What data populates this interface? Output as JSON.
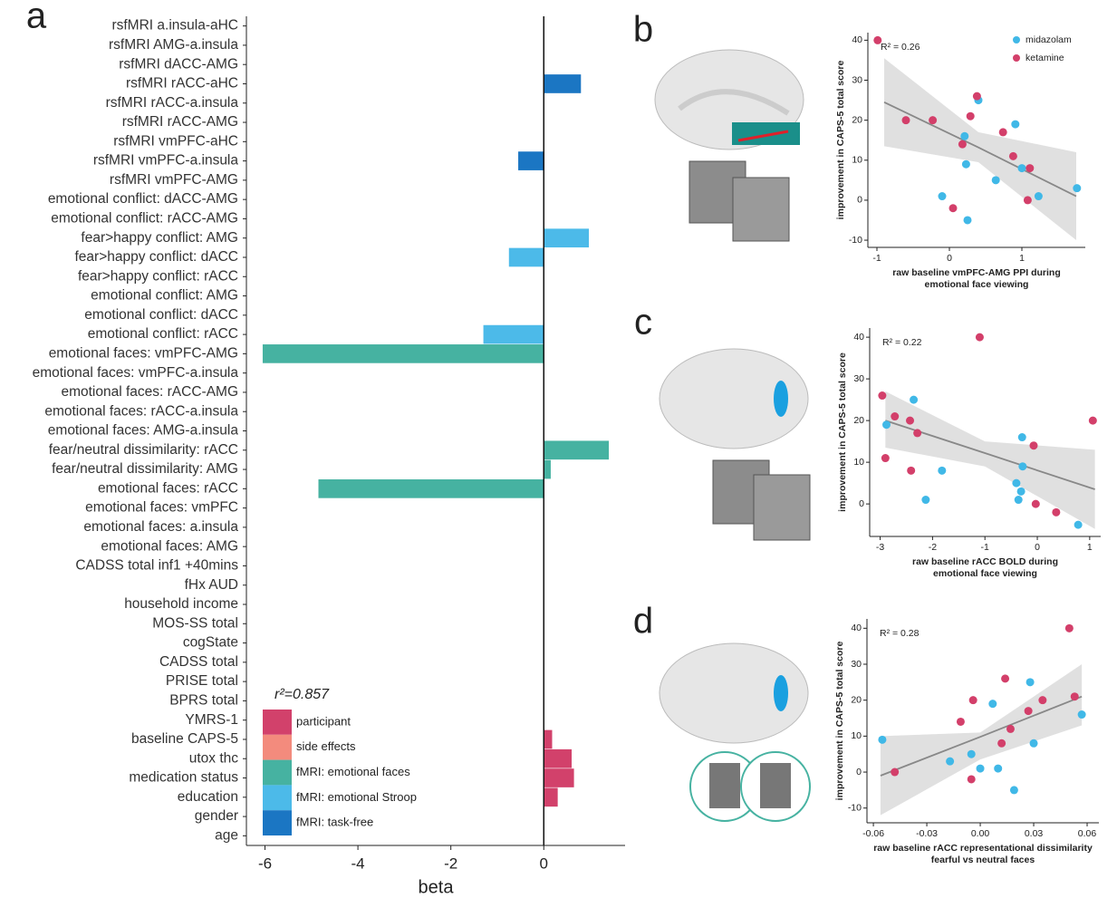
{
  "chart_data": [
    {
      "type": "bar",
      "orientation": "horizontal",
      "panel_label": "a",
      "annotation": "r²=0.857",
      "xlabel": "beta",
      "categories": [
        "rsfMRI a.insula-aHC",
        "rsfMRI AMG-a.insula",
        "rsfMRI dACC-AMG",
        "rsfMRI rACC-aHC",
        "rsfMRI rACC-a.insula",
        "rsfMRI rACC-AMG",
        "rsfMRI vmPFC-aHC",
        "rsfMRI vmPFC-a.insula",
        "rsfMRI vmPFC-AMG",
        "emotional conflict: dACC-AMG",
        "emotional conflict: rACC-AMG",
        "fear>happy conflict: AMG",
        "fear>happy conflict: dACC",
        "fear>happy conflict: rACC",
        "emotional conflict: AMG",
        "emotional conflict: dACC",
        "emotional conflict: rACC",
        "emotional faces: vmPFC-AMG",
        "emotional faces: vmPFC-a.insula",
        "emotional faces: rACC-AMG",
        "emotional faces: rACC-a.insula",
        "emotional faces: AMG-a.insula",
        "fear/neutral dissimilarity: rACC",
        "fear/neutral dissimilarity: AMG",
        "emotional faces: rACC",
        "emotional faces: vmPFC",
        "emotional faces: a.insula",
        "emotional faces: AMG",
        "CADSS total inf1 +40mins",
        "fHx AUD",
        "household income",
        "MOS-SS total",
        "cogState",
        "CADSS total",
        "PRISE total",
        "BPRS total",
        "YMRS-1",
        "baseline CAPS-5",
        "utox thc",
        "medication status",
        "education",
        "gender",
        "age"
      ],
      "series": [
        {
          "name": "participant",
          "color": "#d2416b",
          "values": [
            null,
            null,
            null,
            null,
            null,
            null,
            null,
            null,
            null,
            null,
            null,
            null,
            null,
            null,
            null,
            null,
            null,
            null,
            null,
            null,
            null,
            null,
            null,
            null,
            null,
            null,
            null,
            null,
            null,
            0,
            0,
            0,
            0,
            null,
            0,
            null,
            null,
            0.18,
            0.6,
            0.65,
            0.3,
            0,
            0
          ]
        },
        {
          "name": "side effects",
          "color": "#f38b7d",
          "values": [
            null,
            null,
            null,
            null,
            null,
            null,
            null,
            null,
            null,
            null,
            null,
            null,
            null,
            null,
            null,
            null,
            null,
            null,
            null,
            null,
            null,
            null,
            null,
            null,
            null,
            null,
            null,
            null,
            0,
            null,
            null,
            null,
            null,
            0,
            null,
            0,
            0,
            null,
            null,
            null,
            null,
            null,
            null
          ]
        },
        {
          "name": "fMRI: emotional faces",
          "color": "#46b2a1",
          "values": [
            null,
            null,
            null,
            null,
            null,
            null,
            null,
            null,
            null,
            null,
            null,
            null,
            null,
            null,
            null,
            null,
            null,
            -6.05,
            0,
            0,
            0,
            0,
            1.4,
            0.15,
            -4.85,
            0,
            0,
            0,
            null,
            null,
            null,
            null,
            null,
            null,
            null,
            null,
            null,
            null,
            null,
            null,
            null,
            null,
            null
          ]
        },
        {
          "name": "fMRI: emotional Stroop",
          "color": "#4cbae9",
          "values": [
            null,
            null,
            null,
            null,
            null,
            null,
            null,
            null,
            null,
            0,
            0,
            0.97,
            -0.75,
            0,
            0,
            0,
            -1.3,
            null,
            null,
            null,
            null,
            null,
            null,
            null,
            null,
            null,
            null,
            null,
            null,
            null,
            null,
            null,
            null,
            null,
            null,
            null,
            null,
            null,
            null,
            null,
            null,
            null,
            null
          ]
        },
        {
          "name": "fMRI: task-free",
          "color": "#1b76c3",
          "values": [
            0,
            0,
            0,
            0.8,
            0,
            0,
            0,
            -0.55,
            0,
            null,
            null,
            null,
            null,
            null,
            null,
            null,
            null,
            null,
            null,
            null,
            null,
            null,
            null,
            null,
            null,
            null,
            null,
            null,
            null,
            null,
            null,
            null,
            null,
            null,
            null,
            null,
            null,
            null,
            null,
            null,
            null,
            null,
            null
          ]
        }
      ],
      "xlim": [
        -6.4,
        1.75
      ],
      "xticks": [
        -6,
        -4,
        -2,
        0
      ],
      "legend": "bottom-left"
    },
    {
      "type": "scatter",
      "panel_label": "b",
      "annotation": "R² = 0.26",
      "xlabel": [
        "raw baseline vmPFC-AMG PPI during",
        "emotional face viewing"
      ],
      "ylabel": "improvement in CAPS-5 total score",
      "series": [
        {
          "name": "midazolam",
          "color": "#40b8e7",
          "x": [
            0.4,
            0.21,
            0.23,
            -0.1,
            0.25,
            0.64,
            0.91,
            1.0,
            1.23,
            1.76
          ],
          "values": [
            25,
            16,
            9,
            1,
            -5,
            5,
            19,
            8,
            1,
            3
          ]
        },
        {
          "name": "ketamine",
          "color": "#d33f6a",
          "x": [
            -0.99,
            -0.6,
            -0.23,
            0.18,
            0.29,
            0.38,
            0.74,
            0.88,
            1.11,
            1.08,
            0.05
          ],
          "values": [
            40,
            20,
            20,
            14,
            21,
            26,
            17,
            11,
            8,
            0,
            -2
          ]
        }
      ],
      "fit": {
        "x": [
          -0.9,
          0.4,
          1.75
        ],
        "y": [
          24.5,
          13.2,
          1
        ],
        "lower": [
          13.5,
          9.5,
          -10
        ],
        "upper": [
          35.5,
          17,
          12
        ]
      },
      "xlim": [
        -1.125,
        1.875
      ],
      "ylim": [
        -11.8,
        41.9
      ],
      "xticks": [
        -1,
        0,
        1
      ],
      "yticks": [
        -10,
        0,
        10,
        20,
        30,
        40
      ],
      "legend": "top-right"
    },
    {
      "type": "scatter",
      "panel_label": "c",
      "annotation": "R² = 0.22",
      "xlabel": [
        "raw baseline rACC BOLD during",
        "emotional face viewing"
      ],
      "ylabel": "improvement in CAPS-5 total score",
      "series": [
        {
          "color": "#40b8e7",
          "x": [
            -2.88,
            -2.36,
            -1.82,
            -2.13,
            -0.29,
            -0.28,
            -0.4,
            -0.31,
            -0.36,
            0.78
          ],
          "values": [
            19,
            25,
            8,
            1,
            16,
            9,
            5,
            3,
            1,
            -5
          ]
        },
        {
          "color": "#d33f6a",
          "x": [
            -2.96,
            -2.9,
            -2.72,
            -2.43,
            -2.29,
            -2.41,
            -1.1,
            -0.07,
            -0.03,
            0.36,
            1.06
          ],
          "values": [
            26,
            11,
            21,
            20,
            17,
            8,
            40,
            14,
            0,
            -2,
            20
          ]
        }
      ],
      "fit": {
        "x": [
          -2.9,
          -1,
          1.1
        ],
        "y": [
          20,
          12.2,
          3.5
        ],
        "lower": [
          13.5,
          9,
          -6
        ],
        "upper": [
          27,
          15,
          13
        ]
      },
      "xlim": [
        -3.2,
        1.21
      ],
      "ylim": [
        -7.8,
        42.2
      ],
      "xticks": [
        -3,
        -2,
        -1,
        0,
        1
      ],
      "yticks": [
        0,
        10,
        20,
        30,
        40
      ]
    },
    {
      "type": "scatter",
      "panel_label": "d",
      "annotation": "R² = 0.28",
      "xlabel": [
        "raw baseline rACC representational dissimilarity",
        "fearful vs neutral faces"
      ],
      "ylabel": "improvement in CAPS-5 total score",
      "series": [
        {
          "color": "#40b8e7",
          "x": [
            -0.055,
            -0.017,
            -0.005,
            0,
            0.01,
            0.007,
            0.028,
            0.03,
            0.019,
            0.057
          ],
          "values": [
            9,
            3,
            5,
            1,
            1,
            19,
            25,
            8,
            -5,
            16
          ]
        },
        {
          "color": "#d33f6a",
          "x": [
            -0.048,
            -0.011,
            -0.004,
            -0.005,
            0.014,
            0.017,
            0.012,
            0.027,
            0.035,
            0.05,
            0.053
          ],
          "values": [
            0,
            14,
            20,
            -2,
            26,
            12,
            8,
            17,
            20,
            40,
            21
          ]
        }
      ],
      "fit": {
        "x": [
          -0.056,
          0,
          0.057
        ],
        "y": [
          -1,
          9.8,
          21
        ],
        "lower": [
          -12,
          3.5,
          13
        ],
        "upper": [
          10,
          11,
          30
        ]
      },
      "xlim": [
        -0.0636,
        0.0666
      ],
      "ylim": [
        -14.1,
        42.6
      ],
      "xticks": [
        -0.06,
        -0.03,
        {
          "value": 0,
          "label": "0.00"
        },
        0.03,
        0.06
      ],
      "yticks": [
        -10,
        0,
        10,
        20,
        30,
        40
      ]
    }
  ]
}
